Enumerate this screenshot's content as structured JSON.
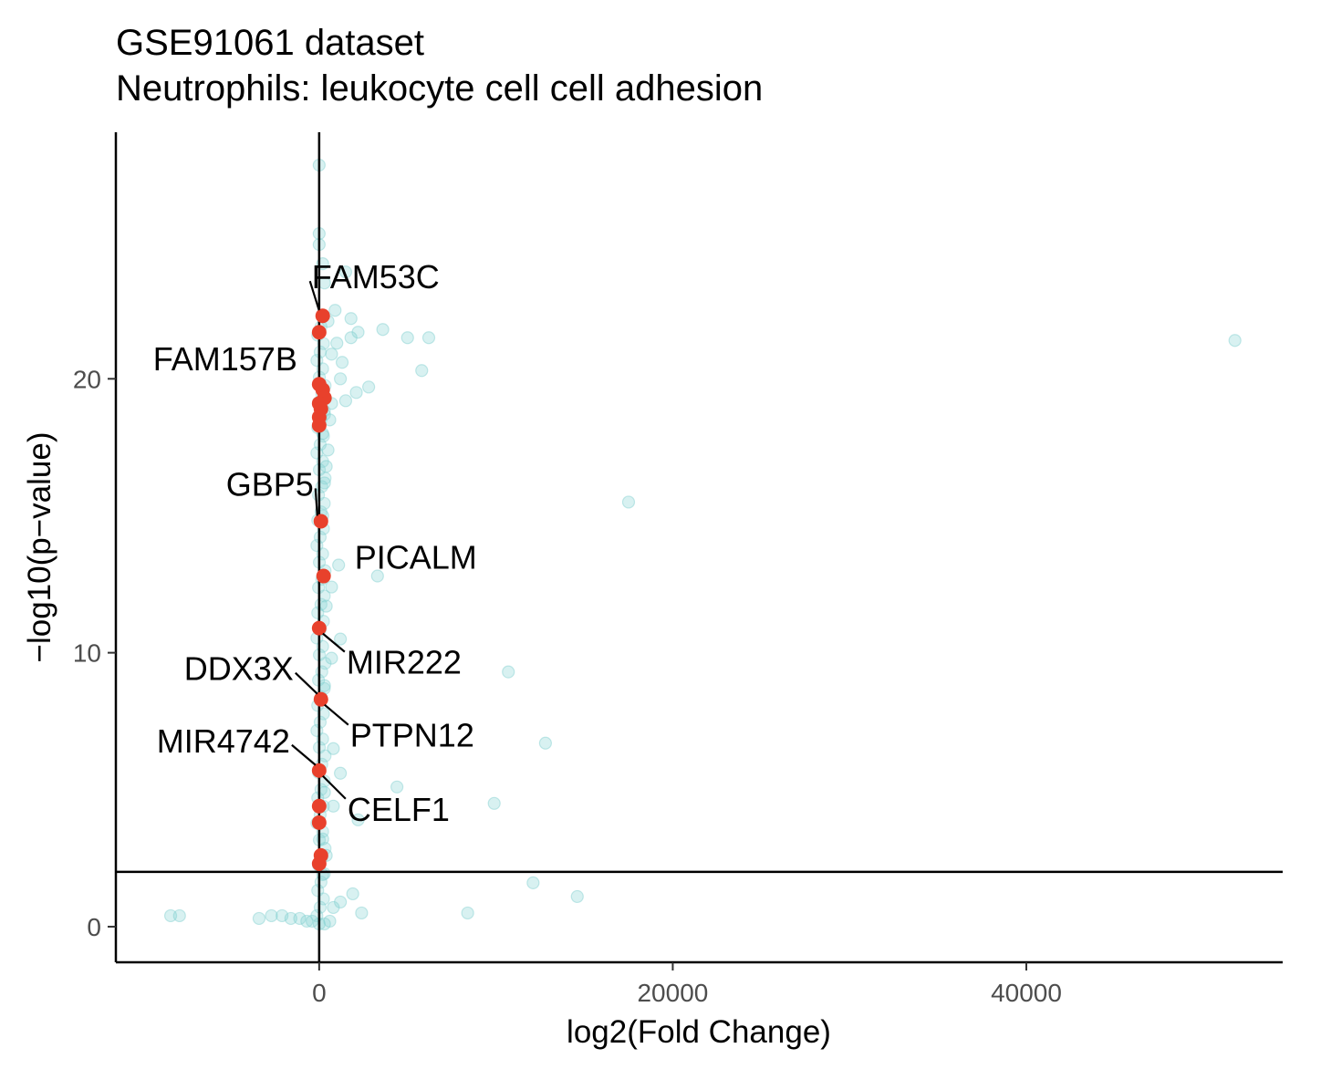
{
  "chart_data": {
    "type": "scatter",
    "title": "GSE91061 dataset",
    "subtitle": "Neutrophils: leukocyte cell cell adhesion",
    "xlabel": "log2(Fold Change)",
    "ylabel": "−log10(p−value)",
    "xlim": [
      -11500,
      54500
    ],
    "ylim": [
      -1.3,
      29.0
    ],
    "x_ticks": [
      0,
      20000,
      40000
    ],
    "x_tick_labels": [
      "0",
      "20000",
      "40000"
    ],
    "y_ticks": [
      0,
      10,
      20
    ],
    "y_tick_labels": [
      "0",
      "10",
      "20"
    ],
    "grid": false,
    "legend": "none",
    "reference_lines": {
      "vertical_x": 0,
      "horizontal_y": 2
    },
    "colors": {
      "background_points": "#7fcfcf",
      "highlight_points": "#e8412c",
      "axis": "#000000",
      "tick_label": "#4d4d4d"
    },
    "series": [
      {
        "points": [
          [
            0,
            27.8
          ],
          [
            0,
            25.3
          ],
          [
            0,
            24.9
          ],
          [
            200,
            24.2
          ],
          [
            1500,
            23.9
          ],
          [
            300,
            23.5
          ],
          [
            900,
            22.5
          ],
          [
            1800,
            22.2
          ],
          [
            500,
            22.1
          ],
          [
            2200,
            21.7
          ],
          [
            3600,
            21.8
          ],
          [
            5000,
            21.5
          ],
          [
            6200,
            21.5
          ],
          [
            51800,
            21.4
          ],
          [
            1800,
            21.5
          ],
          [
            1000,
            21.3
          ],
          [
            700,
            20.9
          ],
          [
            1300,
            20.6
          ],
          [
            5800,
            20.3
          ],
          [
            1200,
            20.0
          ],
          [
            2800,
            19.7
          ],
          [
            2100,
            19.5
          ],
          [
            1500,
            19.2
          ],
          [
            700,
            19.1
          ],
          [
            300,
            18.7
          ],
          [
            600,
            18.5
          ],
          [
            200,
            18.0
          ],
          [
            500,
            17.4
          ],
          [
            400,
            16.8
          ],
          [
            300,
            16.2
          ],
          [
            17500,
            15.5
          ],
          [
            200,
            15.0
          ],
          [
            1100,
            13.2
          ],
          [
            3300,
            12.8
          ],
          [
            700,
            12.4
          ],
          [
            400,
            11.7
          ],
          [
            1200,
            10.5
          ],
          [
            700,
            9.8
          ],
          [
            10700,
            9.3
          ],
          [
            300,
            8.8
          ],
          [
            12800,
            6.7
          ],
          [
            800,
            6.5
          ],
          [
            1200,
            5.6
          ],
          [
            4400,
            5.1
          ],
          [
            300,
            4.9
          ],
          [
            9900,
            4.5
          ],
          [
            800,
            4.4
          ],
          [
            2200,
            3.9
          ],
          [
            200,
            3.2
          ],
          [
            400,
            2.6
          ],
          [
            200,
            1.9
          ],
          [
            12100,
            1.6
          ],
          [
            1900,
            1.2
          ],
          [
            14600,
            1.1
          ],
          [
            1200,
            0.9
          ],
          [
            800,
            0.7
          ],
          [
            2400,
            0.5
          ],
          [
            8400,
            0.5
          ],
          [
            -8400,
            0.4
          ],
          [
            -7900,
            0.4
          ],
          [
            -2700,
            0.4
          ],
          [
            -2100,
            0.4
          ],
          [
            -1600,
            0.3
          ],
          [
            -1100,
            0.3
          ],
          [
            -700,
            0.2
          ],
          [
            -3400,
            0.3
          ],
          [
            -400,
            0.2
          ],
          [
            0,
            0.1
          ],
          [
            600,
            0.2
          ],
          [
            300,
            0.1
          ]
        ]
      },
      {
        "points": [
          [
            200,
            22.3
          ],
          [
            0,
            21.7
          ],
          [
            0,
            19.8
          ],
          [
            200,
            19.6
          ],
          [
            300,
            19.3
          ],
          [
            0,
            19.1
          ],
          [
            100,
            18.9
          ],
          [
            0,
            18.6
          ],
          [
            0,
            18.3
          ],
          [
            100,
            14.8
          ],
          [
            250,
            12.8
          ],
          [
            0,
            10.9
          ],
          [
            100,
            8.3
          ],
          [
            0,
            5.7
          ],
          [
            0,
            4.4
          ],
          [
            0,
            3.8
          ],
          [
            100,
            2.6
          ],
          [
            0,
            2.3
          ]
        ]
      }
    ],
    "labels": [
      {
        "text": "FAM53C",
        "x": 200,
        "y": 22.3
      },
      {
        "text": "FAM157B",
        "x": 0,
        "y": 21.7
      },
      {
        "text": "GBP5",
        "x": 100,
        "y": 14.8
      },
      {
        "text": "PICALM",
        "x": 250,
        "y": 12.8
      },
      {
        "text": "MIR222",
        "x": 0,
        "y": 10.9
      },
      {
        "text": "DDX3X",
        "x": 100,
        "y": 8.3
      },
      {
        "text": "PTPN12",
        "x": 100,
        "y": 8.3
      },
      {
        "text": "MIR4742",
        "x": 0,
        "y": 5.7
      },
      {
        "text": "CELF1",
        "x": 0,
        "y": 5.7
      }
    ]
  }
}
